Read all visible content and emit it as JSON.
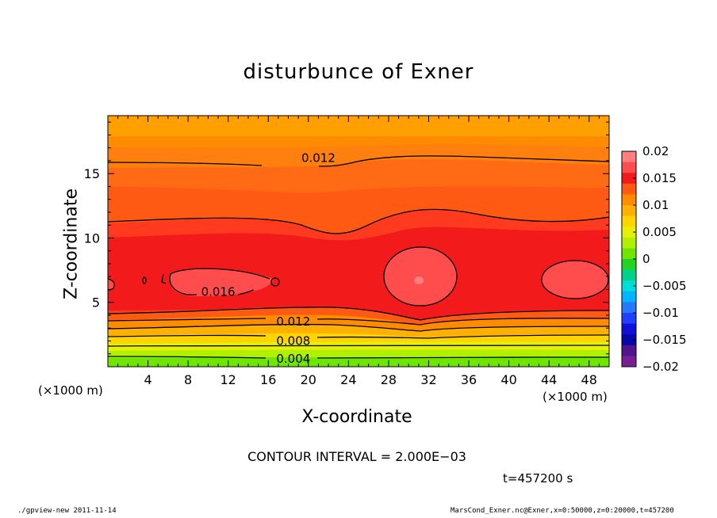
{
  "chart_data": {
    "type": "contour",
    "title": "disturbunce of Exner",
    "xlabel": "X-coordinate",
    "ylabel": "Z-coordinate",
    "x_unit_label": "(×1000 m)",
    "xlim": [
      0,
      50
    ],
    "ylim": [
      0,
      19.5
    ],
    "xticks": [
      4,
      8,
      12,
      16,
      20,
      24,
      28,
      32,
      36,
      40,
      44,
      48
    ],
    "xtick_labels": [
      "4",
      "8",
      "12",
      "16",
      "20",
      "24",
      "28",
      "32",
      "36",
      "40",
      "44",
      "48"
    ],
    "yticks": [
      5,
      10,
      15
    ],
    "ytick_labels": [
      "5",
      "10",
      "15"
    ],
    "colorbar": {
      "ticks": [
        0.02,
        0.015,
        0.01,
        0.005,
        0,
        -0.005,
        -0.01,
        -0.015,
        -0.02
      ],
      "tick_labels": [
        "0.02",
        "0.015",
        "0.01",
        "0.005",
        "0",
        "−0.005",
        "−0.01",
        "−0.015",
        "−0.02"
      ],
      "colors": [
        "#ff7f7f",
        "#ff4d4d",
        "#f21a1a",
        "#ff5a14",
        "#ff8c00",
        "#ffb000",
        "#ffd400",
        "#e6f000",
        "#b0f000",
        "#6ee600",
        "#22d422",
        "#00d28c",
        "#00dcd8",
        "#00b4ff",
        "#2878ff",
        "#2040ff",
        "#1010d8",
        "#0808a8",
        "#50148c",
        "#7a1e96"
      ]
    },
    "contour_labels": [
      {
        "text": "0.012",
        "x": 21,
        "z": 16.2
      },
      {
        "text": "0.016",
        "x": 11,
        "z": 5.8
      },
      {
        "text": "0.012",
        "x": 18.5,
        "z": 3.5
      },
      {
        "text": "0.008",
        "x": 18.5,
        "z": 2.0
      },
      {
        "text": "0.004",
        "x": 18.5,
        "z": 0.6
      }
    ],
    "contour_interval_text": "CONTOUR INTERVAL = 2.000E−03",
    "time_text": "t=457200 s"
  },
  "footer": {
    "left": "./gpview-new  2011-11-14",
    "right": "MarsCond_Exner.nc@Exner,x=0:50000,z=0:20000,t=457200"
  }
}
